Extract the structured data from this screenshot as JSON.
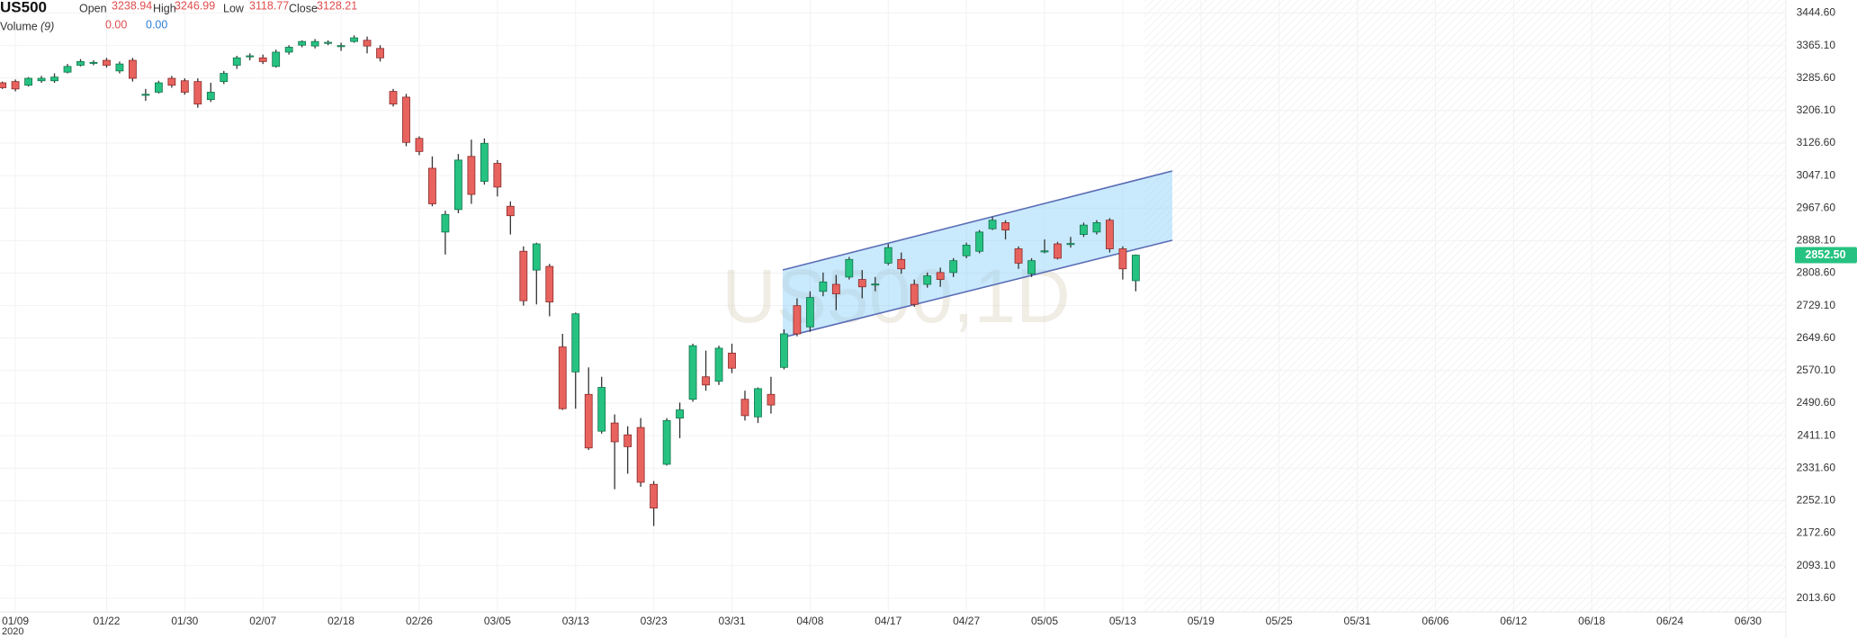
{
  "header": {
    "symbol": "US500",
    "open_label": "Open",
    "high_label": "High",
    "low_label": "Low",
    "close_label": "Close",
    "volume_label": "Volume",
    "volume_period": "(9)",
    "volume_values": [
      "0.00",
      "0.00"
    ]
  },
  "chart_data": {
    "type": "candlestick",
    "watermark": "US500,1D",
    "year_label": "2020",
    "last_price_label": "2852.50",
    "up_color": "#26c281",
    "down_color": "#e8635e",
    "categories": [
      null,
      "01/09",
      null,
      null,
      null,
      null,
      null,
      null,
      "01/22",
      null,
      null,
      null,
      null,
      null,
      "01/30",
      null,
      null,
      null,
      null,
      null,
      "02/07",
      null,
      null,
      null,
      null,
      null,
      "02/18",
      null,
      null,
      null,
      null,
      null,
      "02/26",
      null,
      null,
      null,
      null,
      null,
      "03/05",
      null,
      null,
      null,
      null,
      null,
      "03/13",
      null,
      null,
      null,
      null,
      null,
      "03/23",
      null,
      null,
      null,
      null,
      null,
      "03/31",
      null,
      null,
      null,
      null,
      null,
      "04/08",
      null,
      null,
      null,
      null,
      null,
      "04/17",
      null,
      null,
      null,
      null,
      null,
      "04/27",
      null,
      null,
      null,
      null,
      null,
      "05/05",
      null,
      null,
      null,
      null,
      null,
      "05/13",
      null,
      null,
      null,
      null,
      null,
      "05/19",
      null,
      null,
      null,
      null,
      null,
      "05/25",
      null,
      null,
      null,
      null,
      null,
      "05/31",
      null,
      null,
      null,
      null,
      null,
      "06/06",
      null,
      null,
      null,
      null,
      null,
      "06/12",
      null,
      null,
      null,
      null,
      null,
      "06/18",
      null,
      null,
      null,
      null,
      null,
      "06/24",
      null,
      null,
      null,
      null,
      null,
      "06/30"
    ],
    "open": [
      3274,
      3277,
      3268,
      3279,
      3279,
      3300,
      3317,
      3322,
      3329,
      3303,
      3329,
      3244,
      3251,
      3285,
      3279,
      3277,
      3233,
      3277,
      3317,
      3338,
      3335,
      3314,
      3349,
      3366,
      3364,
      3371,
      3363,
      3375,
      3378,
      3358,
      3253,
      3238.94,
      3138,
      3065,
      2909,
      2964,
      3094,
      3033,
      3077,
      2972,
      2862,
      2816,
      2825,
      2628,
      2567,
      2512,
      2422,
      2442,
      2413,
      2431,
      2292,
      2341,
      2454,
      2500,
      2555,
      2544,
      2613,
      2500,
      2457,
      2512,
      2578,
      2729,
      2677,
      2764,
      2781,
      2799,
      2793,
      2780,
      2833,
      2842,
      2781,
      2781,
      2810,
      2810,
      2851,
      2862,
      2917,
      2932,
      2868,
      2807,
      2861,
      2880,
      2879,
      2903,
      2909,
      2938,
      2868,
      2790,
      null,
      null,
      null,
      null,
      null,
      null,
      null,
      null,
      null,
      null,
      null,
      null,
      null,
      null,
      null,
      null,
      null,
      null,
      null,
      null,
      null,
      null,
      null,
      null,
      null,
      null,
      null,
      null,
      null,
      null,
      null,
      null,
      null,
      null,
      null,
      null,
      null,
      null,
      null,
      null,
      null,
      null,
      null,
      null,
      null,
      null,
      null
    ],
    "high": [
      3277,
      3282,
      3288,
      3291,
      3297,
      3320,
      3332,
      3329,
      3335,
      3326,
      3335,
      3259,
      3279,
      3291,
      3285,
      3285,
      3274,
      3303,
      3340,
      3346,
      3343,
      3355,
      3366,
      3378,
      3381,
      3378,
      3372,
      3390,
      3387,
      3366,
      3259,
      3246.99,
      3143,
      3094,
      2961,
      3100,
      3135,
      3138,
      3085,
      2984,
      2874,
      2883,
      2831,
      2660,
      2712,
      2578,
      2555,
      2463,
      2434,
      2454,
      2300,
      2454,
      2492,
      2636,
      2619,
      2631,
      2636,
      2521,
      2529,
      2555,
      2671,
      2747,
      2764,
      2810,
      2804,
      2848,
      2816,
      2799,
      2880,
      2859,
      2793,
      2810,
      2822,
      2845,
      2883,
      2914,
      2946,
      2938,
      2874,
      2845,
      2891,
      2885,
      2897,
      2932,
      2938,
      2943,
      2874,
      2854,
      null,
      null,
      null,
      null,
      null,
      null,
      null,
      null,
      null,
      null,
      null,
      null,
      null,
      null,
      null,
      null,
      null,
      null,
      null,
      null,
      null,
      null,
      null,
      null,
      null,
      null,
      null,
      null,
      null,
      null,
      null,
      null,
      null,
      null,
      null,
      null,
      null,
      null,
      null,
      null,
      null,
      null,
      null,
      null,
      null,
      null,
      null
    ],
    "low": [
      3259,
      3253,
      3265,
      3274,
      3274,
      3297,
      3314,
      3317,
      3311,
      3297,
      3277,
      3230,
      3248,
      3262,
      3245,
      3213,
      3227,
      3271,
      3308,
      3329,
      3320,
      3311,
      3343,
      3361,
      3358,
      3366,
      3352,
      3372,
      3346,
      3326,
      3216,
      3118.77,
      3097,
      2972,
      2854,
      2955,
      2978,
      3025,
      2996,
      2903,
      2729,
      2732,
      2703,
      2474,
      2477,
      2376,
      2416,
      2280,
      2318,
      2286,
      2190,
      2338,
      2405,
      2494,
      2521,
      2535,
      2564,
      2448,
      2442,
      2465,
      2573,
      2654,
      2665,
      2752,
      2718,
      2793,
      2747,
      2764,
      2828,
      2807,
      2726,
      2773,
      2775,
      2799,
      2845,
      2857,
      2914,
      2891,
      2819,
      2799,
      2857,
      2842,
      2871,
      2897,
      2903,
      2859,
      2793,
      2764,
      null,
      null,
      null,
      null,
      null,
      null,
      null,
      null,
      null,
      null,
      null,
      null,
      null,
      null,
      null,
      null,
      null,
      null,
      null,
      null,
      null,
      null,
      null,
      null,
      null,
      null,
      null,
      null,
      null,
      null,
      null,
      null,
      null,
      null,
      null,
      null,
      null,
      null,
      null,
      null,
      null,
      null,
      null,
      null,
      null,
      null,
      null
    ],
    "close": [
      3262,
      3259,
      3285,
      3285,
      3288,
      3314,
      3326,
      3324,
      3317,
      3320,
      3285,
      3246,
      3274,
      3268,
      3251,
      3222,
      3251,
      3297,
      3335,
      3340,
      3326,
      3349,
      3361,
      3375,
      3375,
      3373,
      3365,
      3384,
      3364,
      3335,
      3222,
      3128.21,
      3106,
      2978,
      2952,
      3085,
      3001,
      3126,
      3019,
      2949,
      2741,
      2880,
      2738,
      2477,
      2709,
      2381,
      2529,
      2396,
      2384,
      2297,
      2234,
      2448,
      2474,
      2631,
      2535,
      2625,
      2576,
      2460,
      2526,
      2486,
      2660,
      2660,
      2749,
      2787,
      2758,
      2842,
      2775,
      2782,
      2871,
      2819,
      2732,
      2802,
      2793,
      2839,
      2877,
      2909,
      2938,
      2914,
      2833,
      2839,
      2863,
      2845,
      2881,
      2926,
      2932,
      2868,
      2819,
      2852.5,
      null,
      null,
      null,
      null,
      null,
      null,
      null,
      null,
      null,
      null,
      null,
      null,
      null,
      null,
      null,
      null,
      null,
      null,
      null,
      null,
      null,
      null,
      null,
      null,
      null,
      null,
      null,
      null,
      null,
      null,
      null,
      null,
      null,
      null,
      null,
      null,
      null,
      null,
      null,
      null,
      null,
      null,
      null,
      null,
      null,
      null,
      null
    ],
    "ylim": [
      1980,
      3476.5
    ],
    "yticks": [
      {
        "value": 3444.6,
        "label": "3444.60"
      },
      {
        "value": 3365.1,
        "label": "3365.10"
      },
      {
        "value": 3285.6,
        "label": "3285.60"
      },
      {
        "value": 3206.1,
        "label": "3206.10"
      },
      {
        "value": 3126.6,
        "label": "3126.60"
      },
      {
        "value": 3047.1,
        "label": "3047.10"
      },
      {
        "value": 2967.6,
        "label": "2967.60"
      },
      {
        "value": 2888.1,
        "label": "2888.10"
      },
      {
        "value": 2808.6,
        "label": "2808.60"
      },
      {
        "value": 2729.1,
        "label": "2729.10"
      },
      {
        "value": 2649.6,
        "label": "2649.60"
      },
      {
        "value": 2570.1,
        "label": "2570.10"
      },
      {
        "value": 2490.6,
        "label": "2490.60"
      },
      {
        "value": 2411.1,
        "label": "2411.10"
      },
      {
        "value": 2331.6,
        "label": "2331.60"
      },
      {
        "value": 2252.1,
        "label": "2252.10"
      },
      {
        "value": 2172.6,
        "label": "2172.60"
      },
      {
        "value": 2093.1,
        "label": "2093.10"
      },
      {
        "value": 2013.6,
        "label": "2013.60"
      }
    ],
    "grid": true
  }
}
